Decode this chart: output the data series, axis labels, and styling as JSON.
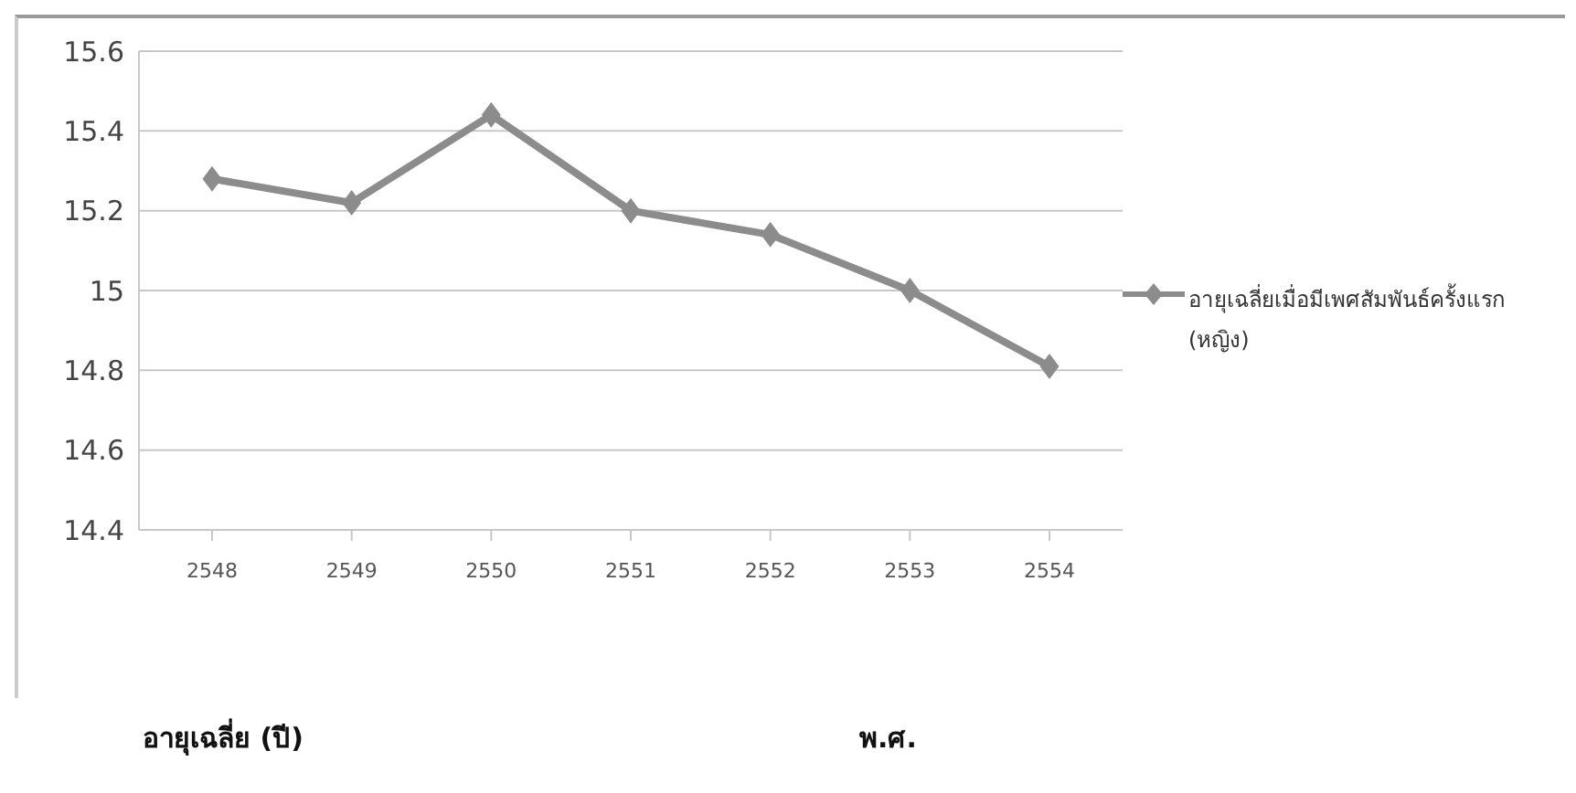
{
  "chart_data": {
    "type": "line",
    "annotations": [
      "อายุเฉลี่ย (ปี)",
      "พ.ศ."
    ],
    "categories": [
      "2548",
      "2549",
      "2550",
      "2551",
      "2552",
      "2553",
      "2554"
    ],
    "series": [
      {
        "name": "อายุเฉลี่ยเมื่อมีเพศสัมพันธ์ครั้งแรก (หญิง)",
        "color": "#8c8c8c",
        "values": [
          15.28,
          15.22,
          15.44,
          15.2,
          15.14,
          15.0,
          14.81
        ]
      }
    ],
    "ylim": [
      14.4,
      15.6
    ],
    "yticks": [
      14.4,
      14.6,
      14.8,
      15,
      15.2,
      15.4,
      15.6
    ],
    "grid": "y",
    "legend": "right",
    "marker": "diamond",
    "line_style": "solid"
  }
}
